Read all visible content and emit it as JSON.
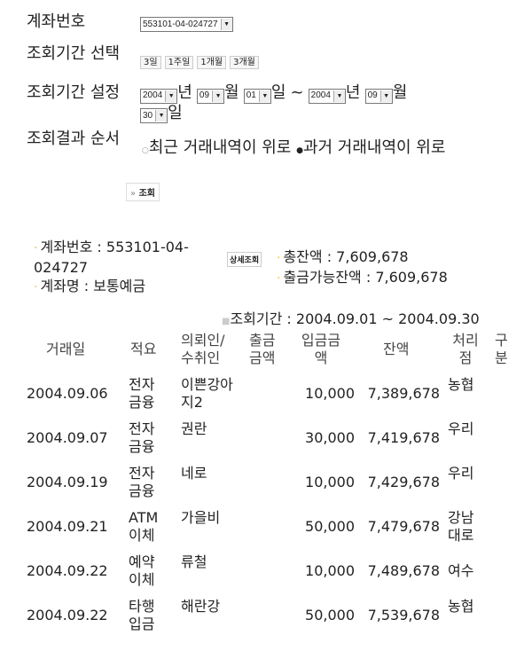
{
  "form": {
    "account_label": "계좌번호",
    "account_value": "553101-04-024727",
    "period_select_label": "조회기간 선택",
    "period_buttons": [
      "3일",
      "1주일",
      "1개월",
      "3개월"
    ],
    "period_set_label": "조회기간 설정",
    "from": {
      "year": "2004",
      "month": "09",
      "day": "01"
    },
    "to": {
      "year": "2004",
      "month": "09",
      "day": "30"
    },
    "unit_year": "년",
    "unit_month": "월",
    "unit_day": "일",
    "tilde": "~",
    "order_label": "조회결과 순서",
    "order_options": [
      "최근 거래내역이 위로",
      "과거 거래내역이 위로"
    ],
    "order_selected": 1,
    "search_button": "조회",
    "search_prefix": "»"
  },
  "summary": {
    "account": "계좌번호 : 553101-04-024727",
    "name": "계좌명 : 보통예금",
    "detail_button": "상세조회",
    "total": "총잔액 : 7,609,678",
    "available": "출금가능잔액 : 7,609,678",
    "period": "조회기간 : 2004.09.01 ~ 2004.09.30"
  },
  "table": {
    "headers": [
      "거래일",
      "적요",
      "의뢰인/수취인",
      "출금금액",
      "입금금액",
      "잔액",
      "처리점",
      "구분"
    ],
    "rows": [
      {
        "date": "2004.09.06",
        "memo": "전자금융",
        "party": "이쁜강아지2",
        "out": "",
        "in": "10,000",
        "balance": "7,389,678",
        "branch": "농협",
        "type": ""
      },
      {
        "date": "2004.09.07",
        "memo": "전자금융",
        "party": "권란",
        "out": "",
        "in": "30,000",
        "balance": "7,419,678",
        "branch": "우리",
        "type": ""
      },
      {
        "date": "2004.09.19",
        "memo": "전자금융",
        "party": "네로",
        "out": "",
        "in": "10,000",
        "balance": "7,429,678",
        "branch": "우리",
        "type": ""
      },
      {
        "date": "2004.09.21",
        "memo": "ATM이체",
        "party": "가을비",
        "out": "",
        "in": "50,000",
        "balance": "7,479,678",
        "branch": "강남대로",
        "type": ""
      },
      {
        "date": "2004.09.22",
        "memo": "예약이체",
        "party": "류철",
        "out": "",
        "in": "10,000",
        "balance": "7,489,678",
        "branch": "여수",
        "type": ""
      },
      {
        "date": "2004.09.22",
        "memo": "타행입금",
        "party": "해란강",
        "out": "",
        "in": "50,000",
        "balance": "7,539,678",
        "branch": "농협",
        "type": ""
      }
    ]
  }
}
